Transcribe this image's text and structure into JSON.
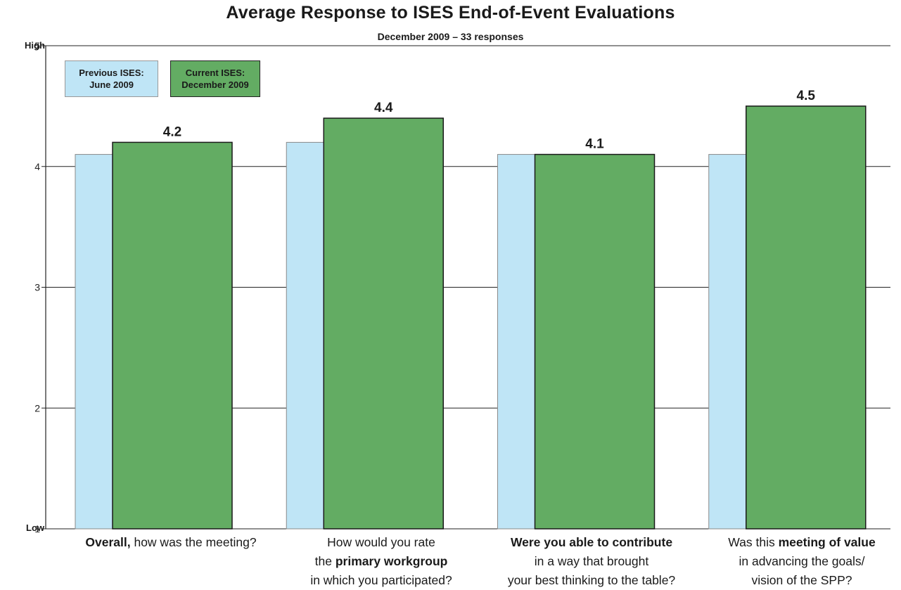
{
  "chart_data": {
    "type": "bar",
    "title": "Average Response to ISES End-of-Event Evaluations",
    "subtitle": "December 2009 – 33 responses",
    "ylim": [
      1,
      5
    ],
    "yticks": [
      "1",
      "2",
      "3",
      "4",
      "5"
    ],
    "y_high_label": "High",
    "y_low_label": "Low",
    "grid": true,
    "legend_placement": "top-left",
    "categories": [
      [
        "Overall,",
        " how was the meeting?",
        "",
        "",
        ""
      ],
      [
        "How would you rate",
        "the ",
        "primary workgroup",
        "",
        "in which you participated?"
      ],
      [
        "Were you able to contribute",
        "in a way that brought",
        "",
        "",
        "your best thinking to the table?"
      ],
      [
        "Was this ",
        "meeting of value",
        "in advancing the goals/",
        "",
        "vision of the SPP?"
      ]
    ],
    "series": [
      {
        "name_line1": "Previous ISES:",
        "name_line2": "June 2009",
        "color": "#bfe5f6",
        "values": [
          4.1,
          4.2,
          4.1,
          4.1
        ]
      },
      {
        "name_line1": "Current ISES:",
        "name_line2": "December 2009",
        "color": "#63ac63",
        "values": [
          4.2,
          4.4,
          4.1,
          4.5
        ]
      }
    ],
    "data_labels": [
      "4.2",
      "4.4",
      "4.1",
      "4.5"
    ]
  }
}
